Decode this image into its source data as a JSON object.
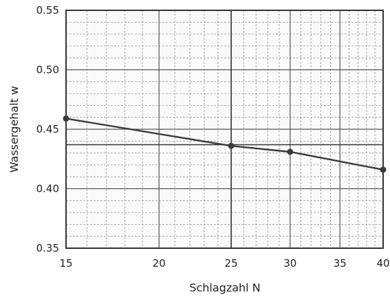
{
  "chart_data": {
    "type": "line",
    "title": "",
    "xlabel": "Schlagzahl N",
    "ylabel": "Wassergehalt w",
    "x_scale": "log",
    "xlim": [
      15,
      40
    ],
    "ylim": [
      0.35,
      0.55
    ],
    "x_ticks": [
      15,
      20,
      25,
      30,
      35,
      40
    ],
    "x_tick_labels": [
      "15",
      "20",
      "25",
      "30",
      "35",
      "40"
    ],
    "y_ticks": [
      0.35,
      0.4,
      0.45,
      0.5,
      0.55
    ],
    "y_tick_labels": [
      "0.35",
      "0.40",
      "0.45",
      "0.50",
      "0.55"
    ],
    "grid": true,
    "reference_line": {
      "x": 25,
      "y": 0.437
    },
    "series": [
      {
        "x": [
          15,
          25,
          30,
          40
        ],
        "y": [
          0.459,
          0.436,
          0.431,
          0.416
        ]
      }
    ],
    "colors": {
      "line": "#3a3a3a",
      "grid": "#555555",
      "minor_grid": "#9a9a9a"
    }
  }
}
